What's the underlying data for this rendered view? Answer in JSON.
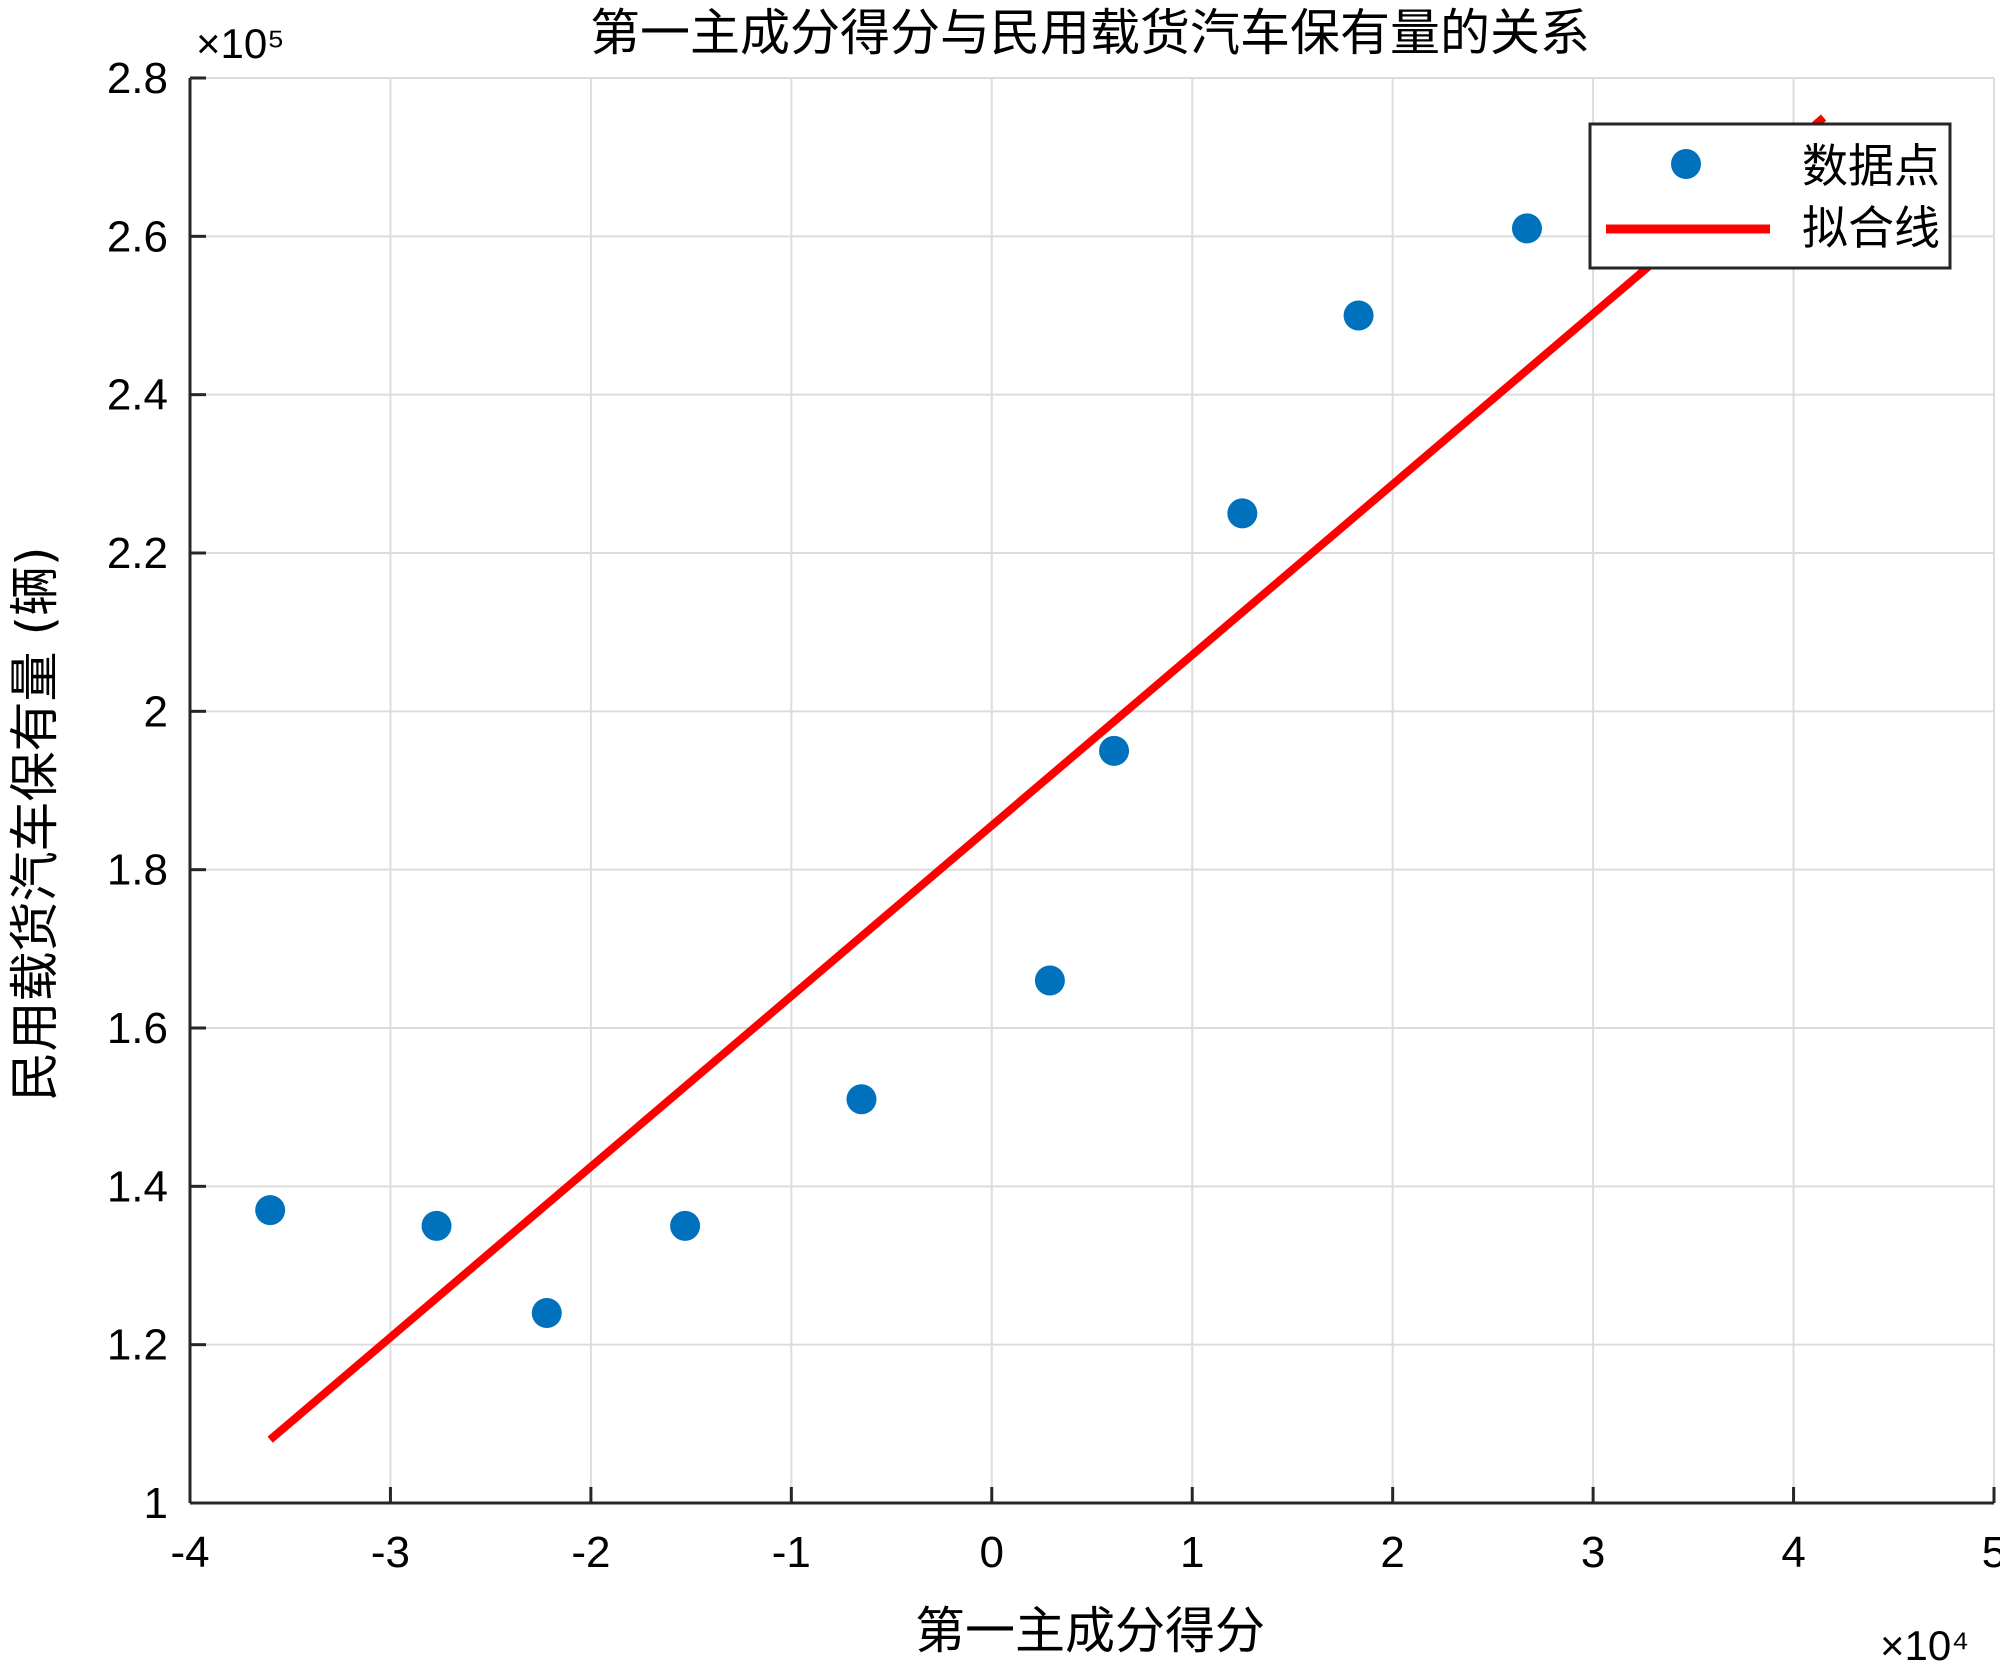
{
  "chart_data": {
    "type": "scatter",
    "title": "第一主成分得分与民用载货汽车保有量的关系",
    "xlabel": "第一主成分得分",
    "ylabel": "民用载货汽车保有量 (辆)",
    "x_multiplier": "×10⁴",
    "y_multiplier": "×10⁵",
    "xlim": [
      -4,
      5
    ],
    "ylim": [
      1,
      2.8
    ],
    "x_ticks": [
      -4,
      -3,
      -2,
      -1,
      0,
      1,
      2,
      3,
      4,
      5
    ],
    "x_tick_labels": [
      "-4",
      "-3",
      "-2",
      "-1",
      "0",
      "1",
      "2",
      "3",
      "4",
      "5"
    ],
    "y_ticks": [
      1,
      1.2,
      1.4,
      1.6,
      1.8,
      2,
      2.2,
      2.4,
      2.6,
      2.8
    ],
    "y_tick_labels": [
      "1",
      "1.2",
      "1.4",
      "1.6",
      "1.8",
      "2",
      "2.2",
      "2.4",
      "2.6",
      "2.8"
    ],
    "grid": true,
    "legend_position": "top-right",
    "series": [
      {
        "name": "数据点",
        "kind": "scatter",
        "color": "#0072BD",
        "x": [
          -3.6,
          -2.77,
          -2.22,
          -1.53,
          -0.65,
          0.29,
          0.61,
          1.25,
          1.83,
          2.67
        ],
        "y": [
          1.37,
          1.35,
          1.24,
          1.35,
          1.51,
          1.66,
          1.95,
          2.25,
          2.5,
          2.61
        ]
      },
      {
        "name": "拟合线",
        "kind": "line",
        "color": "#FF0000",
        "x": [
          -3.6,
          4.15
        ],
        "y": [
          1.08,
          2.75
        ]
      }
    ]
  }
}
